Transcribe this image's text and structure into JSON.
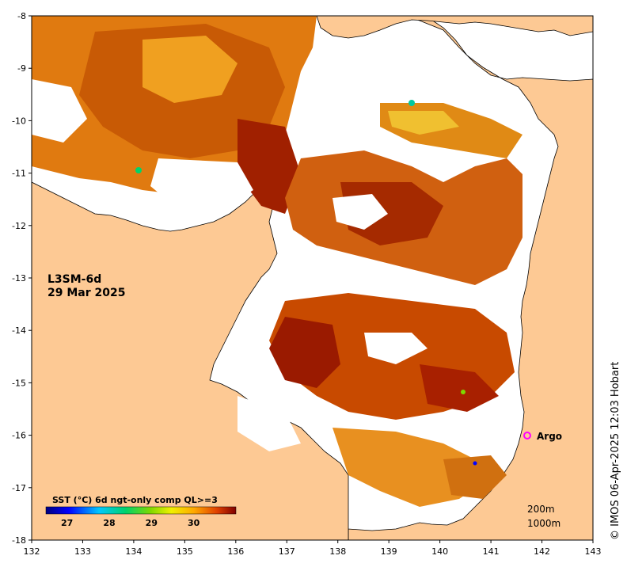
{
  "map": {
    "title_line1": "L3SM-6d",
    "title_line2": "29 Mar 2025",
    "lon_ticks": [
      "132",
      "133",
      "134",
      "135",
      "136",
      "137",
      "138",
      "139",
      "140",
      "141",
      "142",
      "143"
    ],
    "lat_ticks": [
      "-8",
      "-9",
      "-10",
      "-11",
      "-12",
      "-13",
      "-14",
      "-15",
      "-16",
      "-17",
      "-18"
    ],
    "lon_range": [
      132,
      143
    ],
    "lat_range": [
      -18,
      -8
    ],
    "colors": {
      "land": "#fdc994",
      "no_data": "#ffffff",
      "coast": "#000000",
      "argo_marker": "#ff00ff"
    },
    "colorbar": {
      "label": "SST (°C) 6d ngt-only comp QL>=3",
      "ticks": [
        "27",
        "28",
        "29",
        "30"
      ],
      "range": [
        26.5,
        31
      ],
      "colormap": "jet"
    },
    "argo": {
      "label": "Argo",
      "lon": 141.7,
      "lat": -16.0
    },
    "isobaths": [
      "200m",
      "1000m"
    ],
    "credit": "© IMOS 06-Apr-2025 12:03 Hobart"
  }
}
